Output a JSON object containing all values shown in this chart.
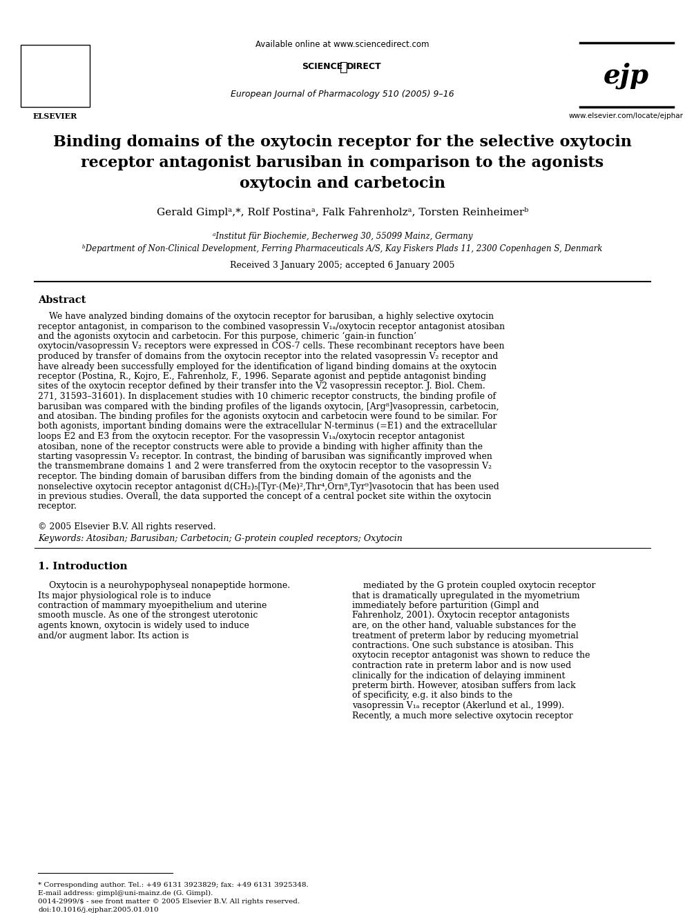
{
  "bg_color": "#ffffff",
  "header_available_online": "Available online at www.sciencedirect.com",
  "header_journal": "European Journal of Pharmacology 510 (2005) 9–16",
  "header_elsevier": "ELSEVIER",
  "header_website": "www.elsevier.com/locate/ejphar",
  "title_line1": "Binding domains of the oxytocin receptor for the selective oxytocin",
  "title_line2": "receptor antagonist barusiban in comparison to the agonists",
  "title_line3": "oxytocin and carbetocin",
  "authors": "Gerald Gimplᵃ,*, Rolf Postinaᵃ, Falk Fahrenholzᵃ, Torsten Reinheimerᵇ",
  "affil_a": "ᵃInstitut für Biochemie, Becherweg 30, 55099 Mainz, Germany",
  "affil_b": "ᵇDepartment of Non-Clinical Development, Ferring Pharmaceuticals A/S, Kay Fiskers Plads 11, 2300 Copenhagen S, Denmark",
  "received": "Received 3 January 2005; accepted 6 January 2005",
  "abstract_title": "Abstract",
  "abstract_text": "We have analyzed binding domains of the oxytocin receptor for barusiban, a highly selective oxytocin receptor antagonist, in comparison to the combined vasopressin V₁ₐ/oxytocin receptor antagonist atosiban and the agonists oxytocin and carbetocin. For this purpose, chimeric ‘gain-in function’ oxytocin/vasopressin V₂ receptors were expressed in COS-7 cells. These recombinant receptors have been produced by transfer of domains from the oxytocin receptor into the related vasopressin V₂ receptor and have already been successfully employed for the identification of ligand binding domains at the oxytocin receptor (Postina, R., Kojro, E., Fahrenholz, F., 1996. Separate agonist and peptide antagonist binding sites of the oxytocin receptor defined by their transfer into the V2 vasopressin receptor. J. Biol. Chem. 271, 31593–31601). In displacement studies with 10 chimeric receptor constructs, the binding profile of barusiban was compared with the binding profiles of the ligands oxytocin, [Arg⁸]vasopressin, carbetocin, and atosiban. The binding profiles for the agonists oxytocin and carbetocin were found to be similar. For both agonists, important binding domains were the extracellular N-terminus (=E1) and the extracellular loops E2 and E3 from the oxytocin receptor. For the vasopressin V₁ₐ/oxytocin receptor antagonist atosiban, none of the receptor constructs were able to provide a binding with higher affinity than the starting vasopressin V₂ receptor. In contrast, the binding of barusiban was significantly improved when the transmembrane domains 1 and 2 were transferred from the oxytocin receptor to the vasopressin V₂ receptor. The binding domain of barusiban differs from the binding domain of the agonists and the nonselective oxytocin receptor antagonist d(CH₂)₅[Tyr-(Me)²,Thr⁴,Orn⁸,Tyr⁹]vasotocin that has been used in previous studies. Overall, the data supported the concept of a central pocket site within the oxytocin receptor.",
  "copyright": "© 2005 Elsevier B.V. All rights reserved.",
  "keywords": "Keywords: Atosiban; Barusiban; Carbetocin; G-protein coupled receptors; Oxytocin",
  "section1_title": "1. Introduction",
  "intro_col1": "Oxytocin is a neurohypophyseal nonapeptide hormone. Its major physiological role is to induce contraction of mammary myoepithelium and uterine smooth muscle. As one of the strongest uterotonic agents known, oxytocin is widely used to induce and/or augment labor. Its action is",
  "intro_col2": "mediated by the G protein coupled oxytocin receptor that is dramatically upregulated in the myometrium immediately before parturition (Gimpl and Fahrenholz, 2001). Oxytocin receptor antagonists are, on the other hand, valuable substances for the treatment of preterm labor by reducing myometrial contractions. One such substance is atosiban. This oxytocin receptor antagonist was shown to reduce the contraction rate in preterm labor and is now used clinically for the indication of delaying imminent preterm birth. However, atosiban suffers from lack of specificity, e.g. it also binds to the vasopressin V₁ₐ receptor (Akerlund et al., 1999). Recently, a much more selective oxytocin receptor",
  "footnote_star": "* Corresponding author. Tel.: +49 6131 3923829; fax: +49 6131 3925348.",
  "footnote_email": "E-mail address: gimpl@uni-mainz.de (G. Gimpl).",
  "footnote_issn": "0014-2999/$ - see front matter © 2005 Elsevier B.V. All rights reserved.",
  "footnote_doi": "doi:10.1016/j.ejphar.2005.01.010"
}
